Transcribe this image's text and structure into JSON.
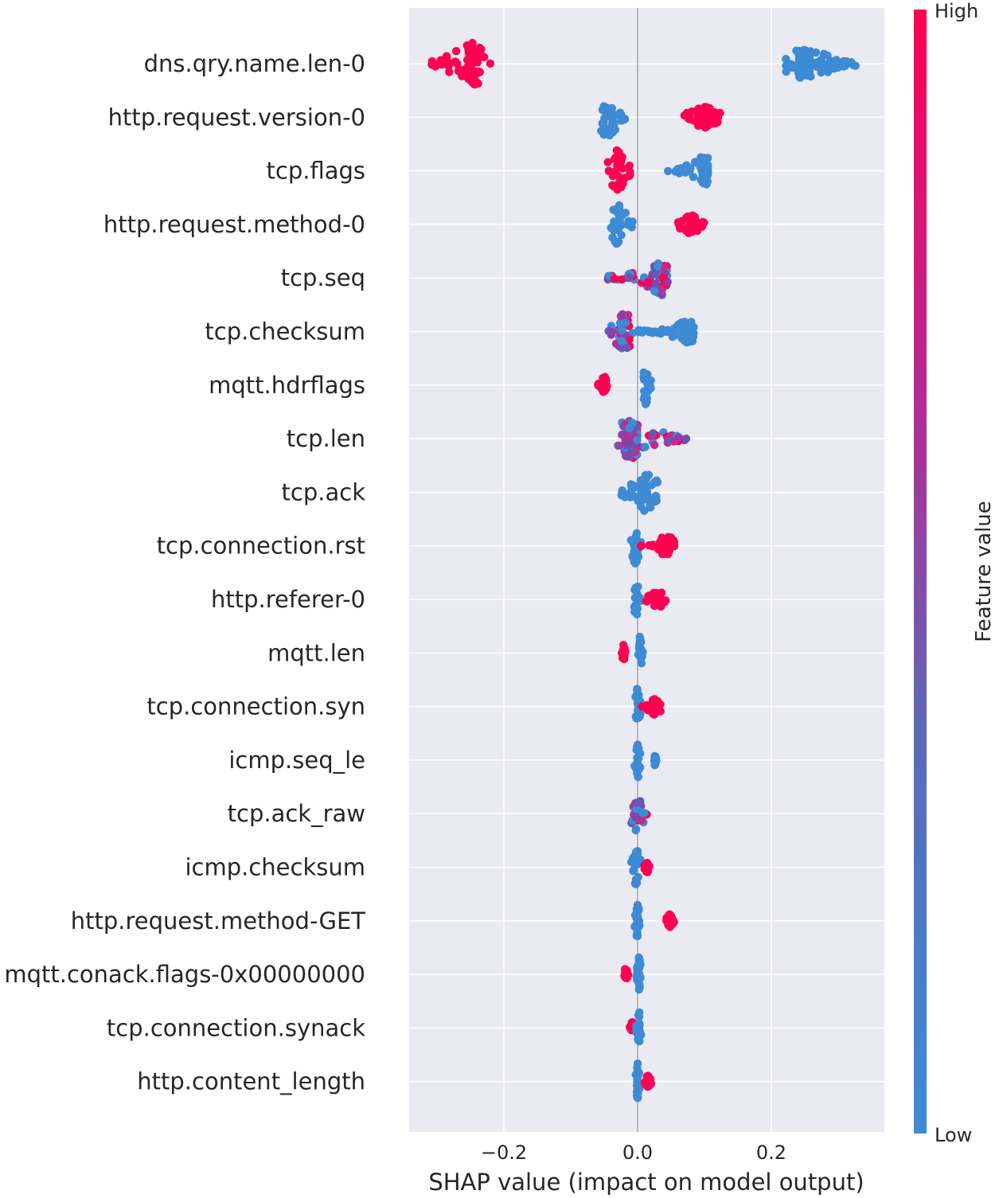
{
  "chart_data": {
    "type": "scatter",
    "subtype": "shap_beeswarm_summary",
    "title": "",
    "xlabel": "SHAP value (impact on model output)",
    "ylabel": "",
    "xlim": [
      -0.34,
      0.37
    ],
    "x_ticks": [
      -0.2,
      0.0,
      0.2
    ],
    "x_tick_labels": [
      "−0.2",
      "0.0",
      "0.2"
    ],
    "grid": true,
    "colorbar": {
      "title": "Feature value",
      "high_label": "High",
      "low_label": "Low",
      "high_color": "#ff0052",
      "low_color": "#3d8bd4"
    },
    "features": [
      {
        "name": "dns.qry.name.len-0",
        "clusters": [
          {
            "value": "high",
            "min": -0.31,
            "max": -0.22,
            "center": -0.245,
            "spread": 1.0
          },
          {
            "value": "low",
            "min": 0.22,
            "max": 0.33,
            "center": 0.25,
            "spread": 0.7
          }
        ]
      },
      {
        "name": "http.request.version-0",
        "clusters": [
          {
            "value": "low",
            "min": -0.055,
            "max": -0.015,
            "center": -0.045,
            "spread": 1.0
          },
          {
            "value": "high",
            "min": 0.065,
            "max": 0.13,
            "center": 0.1,
            "spread": 0.5
          }
        ]
      },
      {
        "name": "tcp.flags",
        "clusters": [
          {
            "value": "high",
            "min": -0.045,
            "max": -0.01,
            "center": -0.03,
            "spread": 1.0
          },
          {
            "value": "low",
            "min": 0.045,
            "max": 0.105,
            "center": 0.1,
            "spread": 0.7
          }
        ]
      },
      {
        "name": "http.request.method-0",
        "clusters": [
          {
            "value": "low",
            "min": -0.04,
            "max": -0.005,
            "center": -0.03,
            "spread": 1.0
          },
          {
            "value": "high",
            "min": 0.06,
            "max": 0.1,
            "center": 0.08,
            "spread": 0.45
          }
        ]
      },
      {
        "name": "tcp.seq",
        "clusters": [
          {
            "value": "mixed",
            "min": -0.045,
            "max": 0.045,
            "center": 0.035,
            "spread": 0.8
          }
        ]
      },
      {
        "name": "tcp.checksum",
        "clusters": [
          {
            "value": "mixed",
            "min": -0.045,
            "max": -0.005,
            "center": -0.02,
            "spread": 1.0
          },
          {
            "value": "low",
            "min": 0.0,
            "max": 0.085,
            "center": 0.075,
            "spread": 0.5
          }
        ]
      },
      {
        "name": "mqtt.hdrflags",
        "clusters": [
          {
            "value": "high",
            "min": -0.06,
            "max": -0.045,
            "center": -0.05,
            "spread": 0.4
          },
          {
            "value": "low",
            "min": 0.005,
            "max": 0.02,
            "center": 0.012,
            "spread": 0.9
          }
        ]
      },
      {
        "name": "tcp.len",
        "clusters": [
          {
            "value": "mixed",
            "min": -0.03,
            "max": 0.075,
            "center": -0.01,
            "spread": 0.9
          }
        ]
      },
      {
        "name": "tcp.ack",
        "clusters": [
          {
            "value": "low",
            "min": -0.025,
            "max": 0.03,
            "center": 0.01,
            "spread": 1.0
          }
        ]
      },
      {
        "name": "tcp.connection.rst",
        "clusters": [
          {
            "value": "low",
            "min": -0.01,
            "max": 0.005,
            "center": -0.003,
            "spread": 0.9
          },
          {
            "value": "high",
            "min": 0.005,
            "max": 0.055,
            "center": 0.045,
            "spread": 0.5
          }
        ]
      },
      {
        "name": "http.referer-0",
        "clusters": [
          {
            "value": "low",
            "min": -0.005,
            "max": 0.005,
            "center": -0.002,
            "spread": 0.9
          },
          {
            "value": "high",
            "min": 0.012,
            "max": 0.045,
            "center": 0.03,
            "spread": 0.4
          }
        ]
      },
      {
        "name": "mqtt.len",
        "clusters": [
          {
            "value": "high",
            "min": -0.025,
            "max": -0.018,
            "center": -0.021,
            "spread": 0.4
          },
          {
            "value": "low",
            "min": 0.0,
            "max": 0.008,
            "center": 0.004,
            "spread": 0.9
          }
        ]
      },
      {
        "name": "tcp.connection.syn",
        "clusters": [
          {
            "value": "low",
            "min": -0.005,
            "max": 0.005,
            "center": 0.0,
            "spread": 0.9
          },
          {
            "value": "high",
            "min": 0.005,
            "max": 0.035,
            "center": 0.025,
            "spread": 0.4
          }
        ]
      },
      {
        "name": "icmp.seq_le",
        "clusters": [
          {
            "value": "low",
            "min": -0.005,
            "max": 0.004,
            "center": 0.0,
            "spread": 0.9
          },
          {
            "value": "low",
            "min": 0.025,
            "max": 0.028,
            "center": 0.026,
            "spread": 0.3
          }
        ]
      },
      {
        "name": "tcp.ack_raw",
        "clusters": [
          {
            "value": "mixed",
            "min": -0.01,
            "max": 0.02,
            "center": 0.0,
            "spread": 0.9
          }
        ]
      },
      {
        "name": "icmp.checksum",
        "clusters": [
          {
            "value": "low",
            "min": -0.01,
            "max": 0.005,
            "center": -0.002,
            "spread": 0.9
          },
          {
            "value": "high",
            "min": 0.01,
            "max": 0.018,
            "center": 0.014,
            "spread": 0.3
          }
        ]
      },
      {
        "name": "http.request.method-GET",
        "clusters": [
          {
            "value": "low",
            "min": -0.005,
            "max": 0.005,
            "center": 0.0,
            "spread": 0.9
          },
          {
            "value": "high",
            "min": 0.043,
            "max": 0.055,
            "center": 0.048,
            "spread": 0.3
          }
        ]
      },
      {
        "name": "mqtt.conack.flags-0x00000000",
        "clusters": [
          {
            "value": "high",
            "min": -0.022,
            "max": -0.014,
            "center": -0.018,
            "spread": 0.3
          },
          {
            "value": "low",
            "min": -0.002,
            "max": 0.005,
            "center": 0.002,
            "spread": 0.9
          }
        ]
      },
      {
        "name": "tcp.connection.synack",
        "clusters": [
          {
            "value": "high",
            "min": -0.012,
            "max": -0.005,
            "center": -0.008,
            "spread": 0.3
          },
          {
            "value": "low",
            "min": -0.002,
            "max": 0.005,
            "center": 0.002,
            "spread": 0.9
          }
        ]
      },
      {
        "name": "http.content_length",
        "clusters": [
          {
            "value": "low",
            "min": -0.003,
            "max": 0.003,
            "center": 0.0,
            "spread": 0.9
          },
          {
            "value": "high",
            "min": 0.01,
            "max": 0.022,
            "center": 0.016,
            "spread": 0.3
          }
        ]
      }
    ]
  }
}
